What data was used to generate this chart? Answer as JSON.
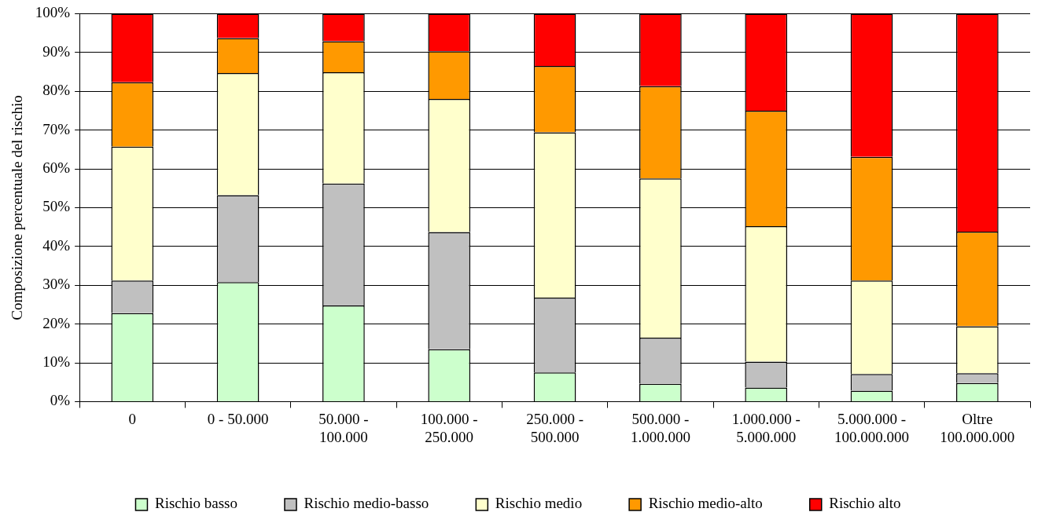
{
  "chart_data": {
    "type": "bar",
    "stacked": true,
    "ylabel": "Composizione percentuale del rischio",
    "categories": [
      "0",
      "0 - 50.000",
      "50.000 - 100.000",
      "100.000 - 250.000",
      "250.000 - 500.000",
      "500.000 - 1.000.000",
      "1.000.000 - 5.000.000",
      "5.000.000 - 100.000.000",
      "Oltre 100.000.000"
    ],
    "series": [
      {
        "name": "Rischio basso",
        "color": "#ccffcc",
        "values": [
          22.8,
          30.8,
          24.8,
          13.5,
          7.5,
          4.6,
          3.6,
          2.8,
          4.8
        ]
      },
      {
        "name": "Rischio medio-basso",
        "color": "#c0c0c0",
        "values": [
          8.4,
          22.4,
          31.4,
          30.2,
          19.3,
          11.9,
          6.7,
          4.3,
          2.5
        ]
      },
      {
        "name": "Rischio medio",
        "color": "#ffffcc",
        "values": [
          34.5,
          31.5,
          28.7,
          34.3,
          42.6,
          41.0,
          34.9,
          24.1,
          12.1
        ]
      },
      {
        "name": "Rischio medio-alto",
        "color": "#ff9900",
        "values": [
          16.6,
          9.0,
          8.0,
          12.3,
          17.1,
          23.8,
          29.8,
          31.9,
          24.4
        ]
      },
      {
        "name": "Rischio alto",
        "color": "#ff0000",
        "values": [
          17.7,
          6.3,
          7.1,
          9.7,
          13.5,
          18.7,
          25.0,
          36.9,
          56.2
        ]
      }
    ],
    "ylim": [
      0,
      100
    ],
    "yticks": [
      {
        "value": 0,
        "label": "0%"
      },
      {
        "value": 10,
        "label": "10%"
      },
      {
        "value": 20,
        "label": "20%"
      },
      {
        "value": 30,
        "label": "30%"
      },
      {
        "value": 40,
        "label": "40%"
      },
      {
        "value": 50,
        "label": "50%"
      },
      {
        "value": 60,
        "label": "60%"
      },
      {
        "value": 70,
        "label": "70%"
      },
      {
        "value": 80,
        "label": "80%"
      },
      {
        "value": 90,
        "label": "90%"
      },
      {
        "value": 100,
        "label": "100%"
      }
    ],
    "grid": "y",
    "legend": "bottom"
  }
}
